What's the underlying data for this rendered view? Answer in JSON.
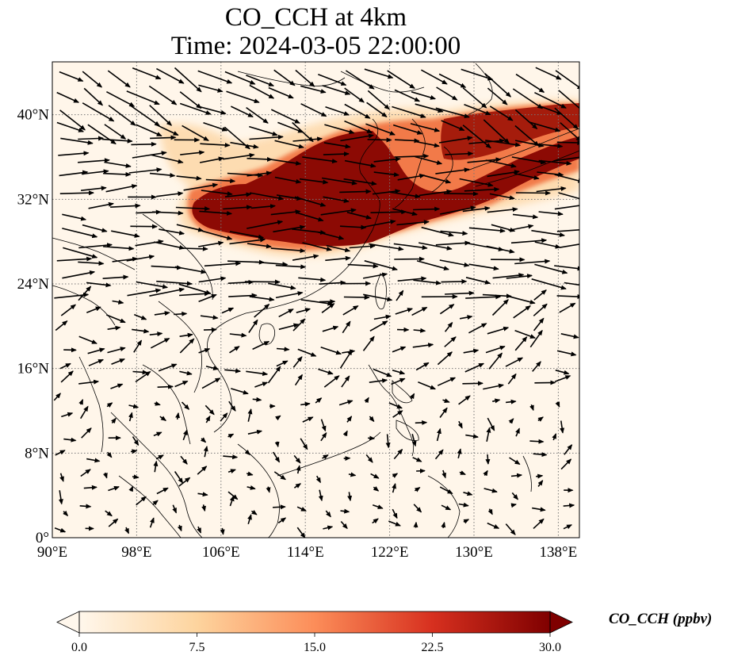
{
  "title": {
    "line1": "CO_CCH at 4km",
    "line2": "Time: 2024-03-05 22:00:00"
  },
  "map": {
    "lon_range": [
      90,
      140
    ],
    "lat_range": [
      0,
      45
    ],
    "lon_ticks": [
      {
        "value": 90,
        "label": "90°E"
      },
      {
        "value": 98,
        "label": "98°E"
      },
      {
        "value": 106,
        "label": "106°E"
      },
      {
        "value": 114,
        "label": "114°E"
      },
      {
        "value": 122,
        "label": "122°E"
      },
      {
        "value": 130,
        "label": "130°E"
      },
      {
        "value": 138,
        "label": "138°E"
      }
    ],
    "lat_ticks": [
      {
        "value": 0,
        "label": "0°"
      },
      {
        "value": 8,
        "label": "8°N"
      },
      {
        "value": 16,
        "label": "16°N"
      },
      {
        "value": 24,
        "label": "24°N"
      },
      {
        "value": 32,
        "label": "32°N"
      },
      {
        "value": 40,
        "label": "40°N"
      }
    ],
    "gridlines": "dotted",
    "coastlines": true,
    "wind_vectors": true
  },
  "colorbar": {
    "label": "CO_CCH (ppbv)",
    "ticks": [
      "0.0",
      "7.5",
      "15.0",
      "22.5",
      "30.0"
    ],
    "range": [
      0,
      30
    ],
    "colormap": "OrRd",
    "extend": "both",
    "colors": [
      "#fff7ec",
      "#fdd49e",
      "#fc8d59",
      "#d7301f",
      "#7f0000"
    ]
  }
}
